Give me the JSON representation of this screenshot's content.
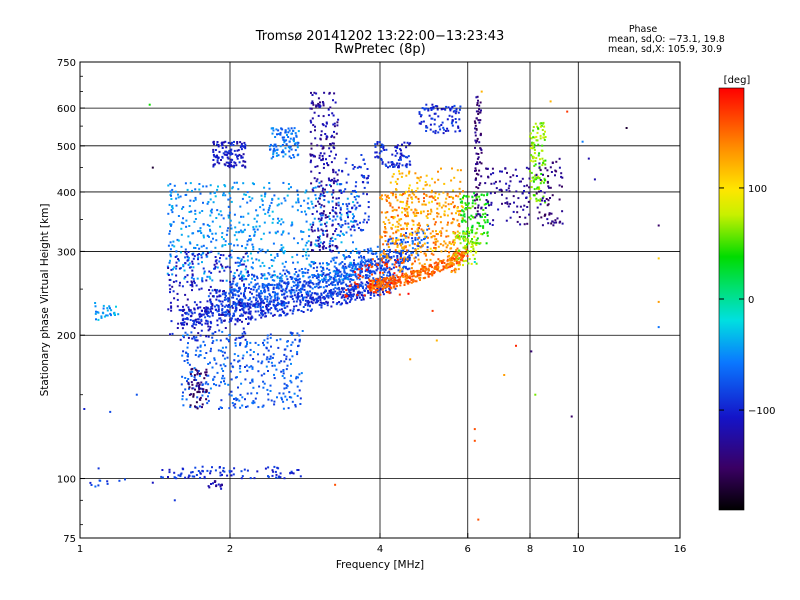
{
  "chart_data": {
    "type": "scatter",
    "title": "Tromsø 20141202 13:22:00−13:23:43",
    "subtitle": "RwPretec (8p)",
    "xlabel": "Frequency [MHz]",
    "ylabel": "Stationary phase Virtual Height [km]",
    "xscale": "log",
    "yscale": "log",
    "xlim": [
      1,
      16
    ],
    "ylim": [
      75,
      750
    ],
    "xticks": [
      1,
      2,
      4,
      6,
      8,
      10,
      16
    ],
    "xtick_labels": [
      "1",
      "2",
      "4",
      "6",
      "8",
      "10",
      "16"
    ],
    "yticks": [
      75,
      100,
      200,
      300,
      400,
      500,
      600,
      750
    ],
    "ytick_labels": [
      "75",
      "100",
      "200",
      "300",
      "400",
      "500",
      "600",
      "750"
    ],
    "grid": true,
    "phase_box": {
      "heading": "Phase",
      "line1": "mean, sd,O: −73.1, 19.8",
      "line2": "mean, sd,X: 105.9, 30.9"
    },
    "colorbar": {
      "label": "[deg]",
      "ticks": [
        100,
        0,
        -100
      ],
      "tick_labels": [
        "100",
        "0",
        "−100"
      ],
      "range": [
        -190,
        190
      ],
      "colormap": "rainbow"
    },
    "clusters": [
      {
        "f": [
          1.6,
          4.3
        ],
        "h": [
          220,
          258
        ],
        "phase": -95,
        "n": 520,
        "curve": "trace",
        "hk": 0.22
      },
      {
        "f": [
          1.8,
          4.6
        ],
        "h": [
          235,
          290
        ],
        "phase": -82,
        "n": 480,
        "curve": "trace",
        "hk": 0.3
      },
      {
        "f": [
          2.0,
          5.0
        ],
        "h": [
          250,
          320
        ],
        "phase": -75,
        "n": 450,
        "curve": "trace",
        "hk": 0.35
      },
      {
        "f": [
          3.8,
          6.0
        ],
        "h": [
          255,
          300
        ],
        "phase": 150,
        "n": 320,
        "curve": "trace",
        "hk": 0.15
      },
      {
        "f": [
          4.0,
          5.8
        ],
        "h": [
          270,
          400
        ],
        "phase": 140,
        "n": 300
      },
      {
        "f": [
          4.2,
          5.9
        ],
        "h": [
          300,
          450
        ],
        "phase": 120,
        "n": 180
      },
      {
        "f": [
          3.4,
          4.6
        ],
        "h": [
          240,
          290
        ],
        "phase": 175,
        "n": 70
      },
      {
        "f": [
          5.8,
          6.6
        ],
        "h": [
          310,
          400
        ],
        "phase": 40,
        "n": 110
      },
      {
        "f": [
          5.6,
          6.4
        ],
        "h": [
          280,
          330
        ],
        "phase": 70,
        "n": 60
      },
      {
        "f": [
          8.0,
          8.6
        ],
        "h": [
          380,
          560
        ],
        "phase": 60,
        "n": 110
      },
      {
        "f": [
          8.2,
          9.3
        ],
        "h": [
          340,
          470
        ],
        "phase": -140,
        "n": 70
      },
      {
        "f": [
          6.5,
          8.0
        ],
        "h": [
          340,
          450
        ],
        "phase": -130,
        "n": 90
      },
      {
        "f": [
          1.5,
          3.6
        ],
        "h": [
          260,
          420
        ],
        "phase": -50,
        "n": 600
      },
      {
        "f": [
          1.5,
          2.2
        ],
        "h": [
          195,
          300
        ],
        "phase": -110,
        "n": 220
      },
      {
        "f": [
          1.6,
          2.8
        ],
        "h": [
          140,
          205
        ],
        "phase": -70,
        "n": 340
      },
      {
        "f": [
          1.65,
          1.8
        ],
        "h": [
          140,
          170
        ],
        "phase": -145,
        "n": 60
      },
      {
        "f": [
          1.85,
          2.15
        ],
        "h": [
          450,
          510
        ],
        "phase": -105,
        "n": 120
      },
      {
        "f": [
          2.4,
          2.75
        ],
        "h": [
          470,
          545
        ],
        "phase": -60,
        "n": 100
      },
      {
        "f": [
          2.9,
          3.3
        ],
        "h": [
          300,
          650
        ],
        "phase": -125,
        "n": 230
      },
      {
        "f": [
          3.3,
          3.8
        ],
        "h": [
          330,
          480
        ],
        "phase": -95,
        "n": 90
      },
      {
        "f": [
          3.9,
          4.6
        ],
        "h": [
          450,
          510
        ],
        "phase": -95,
        "n": 80
      },
      {
        "f": [
          4.8,
          5.8
        ],
        "h": [
          530,
          610
        ],
        "phase": -95,
        "n": 90
      },
      {
        "f": [
          6.2,
          6.4
        ],
        "h": [
          350,
          640
        ],
        "phase": -140,
        "n": 80
      },
      {
        "f": [
          1.45,
          2.8
        ],
        "h": [
          100,
          106
        ],
        "phase": -95,
        "n": 90
      },
      {
        "f": [
          1.8,
          1.95
        ],
        "h": [
          95,
          99
        ],
        "phase": -120,
        "n": 15
      },
      {
        "f": [
          1.07,
          1.2
        ],
        "h": [
          215,
          235
        ],
        "phase": -45,
        "n": 30
      },
      {
        "f": [
          1.0,
          1.25
        ],
        "h": [
          96,
          100
        ],
        "phase": -80,
        "n": 10
      }
    ],
    "sparse_points": [
      {
        "x": 1.38,
        "y": 610,
        "phase": 40
      },
      {
        "x": 1.4,
        "y": 450,
        "phase": -170
      },
      {
        "x": 1.4,
        "y": 98,
        "phase": -110
      },
      {
        "x": 1.55,
        "y": 90,
        "phase": -90
      },
      {
        "x": 1.09,
        "y": 105,
        "phase": -90
      },
      {
        "x": 1.15,
        "y": 138,
        "phase": -80
      },
      {
        "x": 1.3,
        "y": 150,
        "phase": -75
      },
      {
        "x": 1.02,
        "y": 140,
        "phase": -100
      },
      {
        "x": 3.25,
        "y": 97,
        "phase": 160
      },
      {
        "x": 5.1,
        "y": 225,
        "phase": 170
      },
      {
        "x": 4.6,
        "y": 178,
        "phase": 130
      },
      {
        "x": 6.2,
        "y": 127,
        "phase": 160
      },
      {
        "x": 6.2,
        "y": 120,
        "phase": 160
      },
      {
        "x": 6.3,
        "y": 82,
        "phase": 160
      },
      {
        "x": 7.1,
        "y": 165,
        "phase": 130
      },
      {
        "x": 7.5,
        "y": 190,
        "phase": 175
      },
      {
        "x": 8.05,
        "y": 185,
        "phase": -145
      },
      {
        "x": 8.2,
        "y": 150,
        "phase": 60
      },
      {
        "x": 9.7,
        "y": 135,
        "phase": -150
      },
      {
        "x": 10.2,
        "y": 510,
        "phase": -55
      },
      {
        "x": 10.5,
        "y": 470,
        "phase": -120
      },
      {
        "x": 10.8,
        "y": 425,
        "phase": -120
      },
      {
        "x": 12.5,
        "y": 545,
        "phase": -170
      },
      {
        "x": 14.5,
        "y": 340,
        "phase": -150
      },
      {
        "x": 14.5,
        "y": 290,
        "phase": 110
      },
      {
        "x": 14.5,
        "y": 235,
        "phase": 130
      },
      {
        "x": 14.5,
        "y": 208,
        "phase": -60
      },
      {
        "x": 9.5,
        "y": 590,
        "phase": 170
      },
      {
        "x": 8.8,
        "y": 620,
        "phase": 120
      },
      {
        "x": 6.4,
        "y": 650,
        "phase": 120
      },
      {
        "x": 6.2,
        "y": 285,
        "phase": -20
      },
      {
        "x": 5.2,
        "y": 195,
        "phase": 120
      }
    ]
  }
}
